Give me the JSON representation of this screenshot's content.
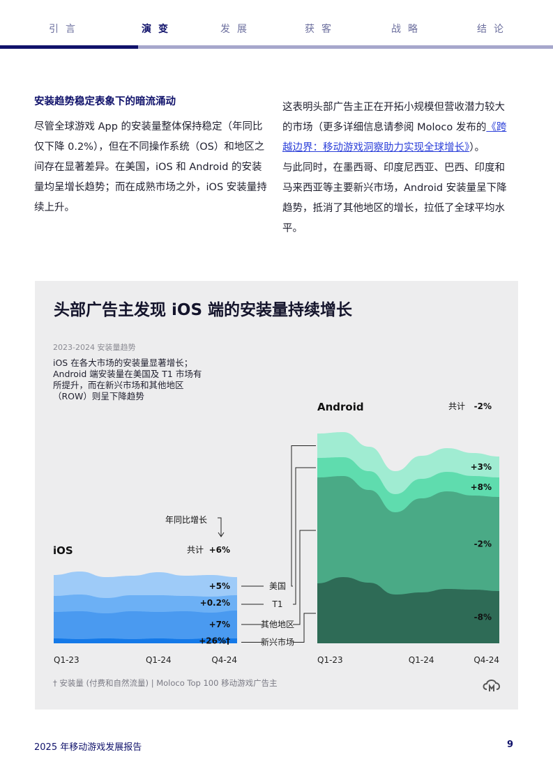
{
  "nav": {
    "items": [
      {
        "label": "引言",
        "active": false
      },
      {
        "label": "演变",
        "active": true
      },
      {
        "label": "发展",
        "active": false
      },
      {
        "label": "获客",
        "active": false
      },
      {
        "label": "战略",
        "active": false
      },
      {
        "label": "结论",
        "active": false
      }
    ],
    "progress": 0.25,
    "colors": {
      "active": "#10126b",
      "inactive": "#a6a7cc"
    }
  },
  "left_column": {
    "heading": "安装趋势稳定表象下的暗流涌动",
    "paragraph": "尽管全球游戏 App 的安装量整体保持稳定（年同比仅下降 0.2%），但在不同操作系统（OS）和地区之间存在显著差异。在美国，iOS 和 Android 的安装量均呈增长趋势；而在成熟市场之外，iOS 安装量持续上升。"
  },
  "right_column": {
    "para1_before": "这表明头部广告主正在开拓小规模但营收潜力较大的市场（更多详细信息请参阅 Moloco 发布的",
    "para1_link": "《跨越边界：移动游戏洞察助力实现全球增长》",
    "para1_after": "）。",
    "para2": "与此同时，在墨西哥、印度尼西亚、巴西、印度和马来西亚等主要新兴市场，Android 安装量呈下降趋势，抵消了其他地区的增长，拉低了全球平均水平。"
  },
  "figure": {
    "title": "头部广告主发现 iOS 端的安装量持续增长",
    "subtitle": "2023-2024  安装量趋势",
    "description_lines": [
      "iOS 在各大市场的安装量显著增长；",
      "Android 端安装量在美国及 T1 市场有",
      "所提升，而在新兴市场和其他地区",
      "（ROW）则呈下降趋势"
    ],
    "note": "† 安装量 (付费和自然流量) | Moloco Top 100 移动游戏广告主",
    "yoy_label": "年同比增长",
    "total_label": "共计"
  },
  "chart_data": [
    {
      "type": "area",
      "stacked": true,
      "title": "iOS",
      "x": [
        "Q1-23",
        "Q2-23",
        "Q3-23",
        "Q4-23",
        "Q1-24",
        "Q2-24",
        "Q3-24",
        "Q4-24"
      ],
      "xticks": [
        "Q1-23",
        "Q1-24",
        "Q4-24"
      ],
      "total_change": "+6%",
      "series": [
        {
          "name": "新兴市场",
          "change": "+26%†",
          "values": [
            7,
            6,
            7,
            6,
            7,
            6,
            7,
            7
          ],
          "color": "#1479e8"
        },
        {
          "name": "其他地区",
          "change": "+7%",
          "values": [
            38,
            40,
            36,
            40,
            38,
            40,
            37,
            40
          ],
          "color": "#4a9af0"
        },
        {
          "name": "T1",
          "change": "+0.2%",
          "values": [
            23,
            24,
            22,
            23,
            24,
            22,
            23,
            22
          ],
          "color": "#6cb0f5"
        },
        {
          "name": "美国",
          "change": "+5%",
          "values": [
            30,
            33,
            30,
            28,
            33,
            29,
            31,
            26
          ],
          "color": "#9ecbf8"
        }
      ]
    },
    {
      "type": "area",
      "stacked": true,
      "title": "Android",
      "x": [
        "Q1-23",
        "Q2-23",
        "Q3-23",
        "Q4-23",
        "Q1-24",
        "Q2-24",
        "Q3-24",
        "Q4-24"
      ],
      "xticks": [
        "Q1-23",
        "Q1-24",
        "Q4-24"
      ],
      "total_change": "-2%",
      "series": [
        {
          "name": "新兴市场",
          "change": "-8%",
          "values": [
            86,
            95,
            87,
            70,
            73,
            78,
            77,
            75
          ],
          "color": "#2e6b56"
        },
        {
          "name": "其他地区",
          "change": "-2%",
          "values": [
            152,
            145,
            133,
            118,
            135,
            140,
            135,
            135
          ],
          "color": "#4aaa86"
        },
        {
          "name": "T1",
          "change": "+8%",
          "values": [
            28,
            27,
            27,
            26,
            28,
            28,
            28,
            28
          ],
          "color": "#5fdcae"
        },
        {
          "name": "美国",
          "change": "+3%",
          "values": [
            35,
            36,
            35,
            33,
            33,
            34,
            33,
            30
          ],
          "color": "#a0ecd2"
        }
      ]
    }
  ],
  "footer": {
    "title": "2025 年移动游戏发展报告",
    "page": "9"
  }
}
